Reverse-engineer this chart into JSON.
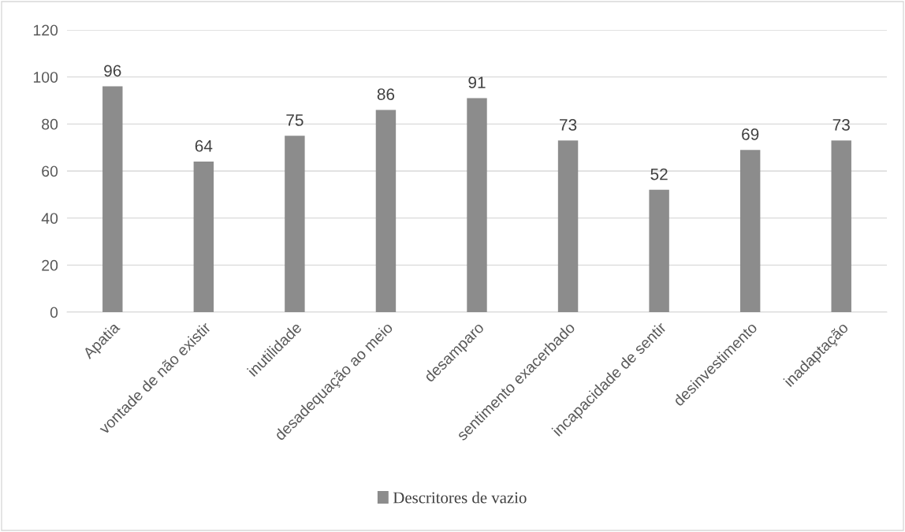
{
  "chart_data": {
    "type": "bar",
    "categories": [
      "Apatia",
      "vontade de não existir",
      "inutilidade",
      "desadequação ao meio",
      "desamparo",
      "sentimento exacerbado",
      "incapacidade de sentir",
      "desinvestimento",
      "inadaptação"
    ],
    "series": [
      {
        "name": "Descritores de vazio",
        "color": "#8c8c8c",
        "values": [
          96,
          64,
          75,
          86,
          91,
          73,
          52,
          69,
          73
        ]
      }
    ],
    "ylim": [
      0,
      120
    ],
    "yticks": [
      0,
      20,
      40,
      60,
      80,
      100,
      120
    ],
    "grid": "y",
    "legend": "bottom",
    "data_labels": true
  }
}
